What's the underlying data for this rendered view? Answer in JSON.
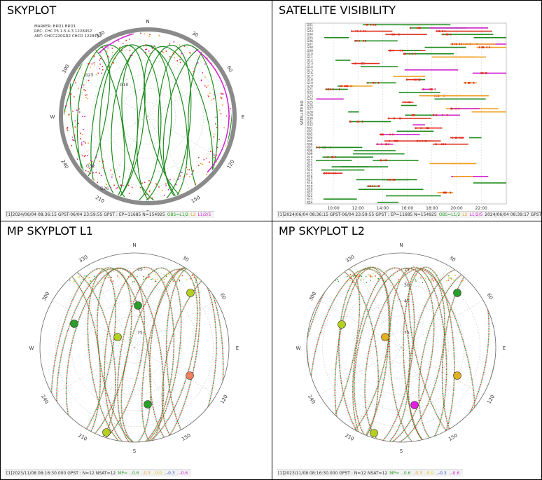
{
  "panels": [
    {
      "type": "skyplot",
      "title": "SKYPLOT",
      "header": [
        "MARKER: BRD1 BRD1",
        "REC: CHC P5 1.5.4.3 1228452",
        "ANT: CHCC220GR2    CHCD 1228452"
      ],
      "compass": [
        "N",
        "E",
        "S",
        "W"
      ],
      "azimuth_ticks": [
        30,
        60,
        120,
        150,
        210,
        240,
        300,
        330
      ],
      "elevation_ticks": [
        15
      ],
      "satellite_labels": [
        "G23",
        "G32",
        "G26",
        "G10"
      ],
      "status": [
        {
          "text": "[1]2024/06/04 08:36:15 GPST-06/04 23:59:55 GPST : EP=11685 N=154925",
          "color": "#333333"
        },
        {
          "text": "OBS=L1/2",
          "color": "#2a9d2a"
        },
        {
          "text": "L2",
          "color": "#f0a020"
        },
        {
          "text": "L1/2/5",
          "color": "#d020d0"
        }
      ]
    },
    {
      "type": "visibility",
      "title": "SATELLITE VISIBILITY",
      "y_label": "SATELLITE NO",
      "rows": [
        "G01",
        "G02",
        "G03",
        "G04",
        "G05",
        "G06",
        "G07",
        "G08",
        "G09",
        "G10",
        "G11",
        "G12",
        "G13",
        "G14",
        "G15",
        "G16",
        "G17",
        "G18",
        "G19",
        "G20",
        "G21",
        "G22",
        "G23",
        "G24",
        "G25",
        "G26",
        "G27",
        "G28",
        "G29",
        "G30",
        "G31",
        "G32",
        "R01",
        "R02",
        "R03",
        "R04",
        "R05",
        "R06",
        "R07",
        "R08",
        "R09",
        "R10",
        "R11",
        "R12",
        "R13",
        "R14",
        "R15",
        "R16",
        "R17",
        "R18",
        "R19",
        "R20",
        "R21",
        "R22",
        "R23",
        "R24"
      ],
      "times": [
        "10:00",
        "12:00",
        "14:00",
        "16:00",
        "18:00",
        "20:00",
        "22:00"
      ],
      "status": [
        {
          "text": "[1]2024/06/04 08:36:15 GPST-06/04 23:59:55 GPST : EP=11685 N=154925",
          "color": "#333333"
        },
        {
          "text": "OBS=L1/2",
          "color": "#2a9d2a"
        },
        {
          "text": "L2",
          "color": "#f0a020"
        },
        {
          "text": "L1/2/5",
          "color": "#d020d0"
        },
        {
          "text": "2024/06/04 08:39:17 GPST",
          "color": "#333333"
        }
      ]
    },
    {
      "type": "mp_skyplot",
      "title": "MP SKYPLOT L1",
      "compass": [
        "N",
        "E",
        "S",
        "W"
      ],
      "azimuth_ticks": [
        30,
        60,
        120,
        150,
        210,
        240,
        300,
        330
      ],
      "elevation_ticks": [
        15,
        75
      ],
      "status": [
        {
          "text": "[1]2023/11/08 08:16:30.000 GPST : N=12 NSAT=12",
          "color": "#333333"
        },
        {
          "text": "MP=",
          "color": "#2a9d2a"
        },
        {
          "text": "..0.6",
          "color": "#2a9d2a"
        },
        {
          "text": "..0.3",
          "color": "#f0a020"
        },
        {
          "text": "..0.0",
          "color": "#d8c000"
        },
        {
          "text": "..-0.3",
          "color": "#3050d0"
        },
        {
          "text": "..-0.6",
          "color": "#d020d0"
        }
      ]
    },
    {
      "type": "mp_skyplot",
      "title": "MP SKYPLOT L2",
      "compass": [
        "N",
        "E",
        "S",
        "W"
      ],
      "azimuth_ticks": [
        30,
        60,
        120,
        150,
        210,
        240,
        300,
        330
      ],
      "elevation_ticks": [
        15,
        30,
        45,
        75
      ],
      "status": [
        {
          "text": "[1]2023/11/08 08:16:30.000 GPST : N=12 NSAT=12",
          "color": "#333333"
        },
        {
          "text": "MP=",
          "color": "#2a9d2a"
        },
        {
          "text": "..0.6",
          "color": "#2a9d2a"
        },
        {
          "text": "..0.3",
          "color": "#f0a020"
        },
        {
          "text": "..0.0",
          "color": "#d8c000"
        },
        {
          "text": "..-0.3",
          "color": "#3050d0"
        },
        {
          "text": "..-0.6",
          "color": "#d020d0"
        }
      ]
    }
  ]
}
